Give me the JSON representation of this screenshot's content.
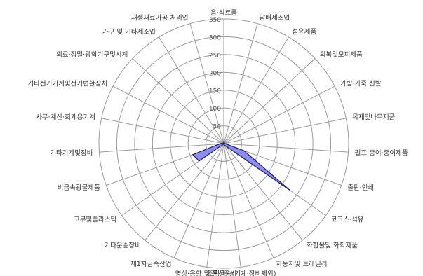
{
  "chart_data": {
    "type": "radar",
    "title": "",
    "rlim": [
      0,
      350
    ],
    "ticks": [
      0,
      50,
      100,
      150,
      200,
      250,
      300,
      350
    ],
    "tick_labels": [
      "",
      "50",
      "100",
      "150",
      "200",
      "250",
      "300",
      "350"
    ],
    "grid": true,
    "categories": [
      "음·식료품",
      "담배제조업",
      "섬유제품",
      "의복및모피제품",
      "가방·가죽·신발",
      "목재및나무제품",
      "펄프·종이·종이제품",
      "출판·인쇄",
      "코크스·석유",
      "화합물및 화학제품",
      "자동자및 트레일러",
      "조립금속(기계·장비제외)",
      "영상·음향 및 통신장비",
      "제1차금속산업",
      "기타운송장비",
      "고무및플라스틱",
      "비금속광물제품",
      "기타기계및장비",
      "사무·계산·회계용기계",
      "기타전기기계및전기변환장치",
      "의료·정밀·광학기구및시계",
      "가구 및 기타제조업",
      "재생재료가공 처리업"
    ],
    "series": [
      {
        "color": "#8e8ef2",
        "stroke": "#1a1a5c",
        "values": [
          5,
          3,
          3,
          2,
          2,
          2,
          5,
          60,
          228,
          8,
          5,
          3,
          2,
          2,
          2,
          85,
          92,
          12,
          5,
          3,
          2,
          2,
          2
        ]
      }
    ]
  }
}
